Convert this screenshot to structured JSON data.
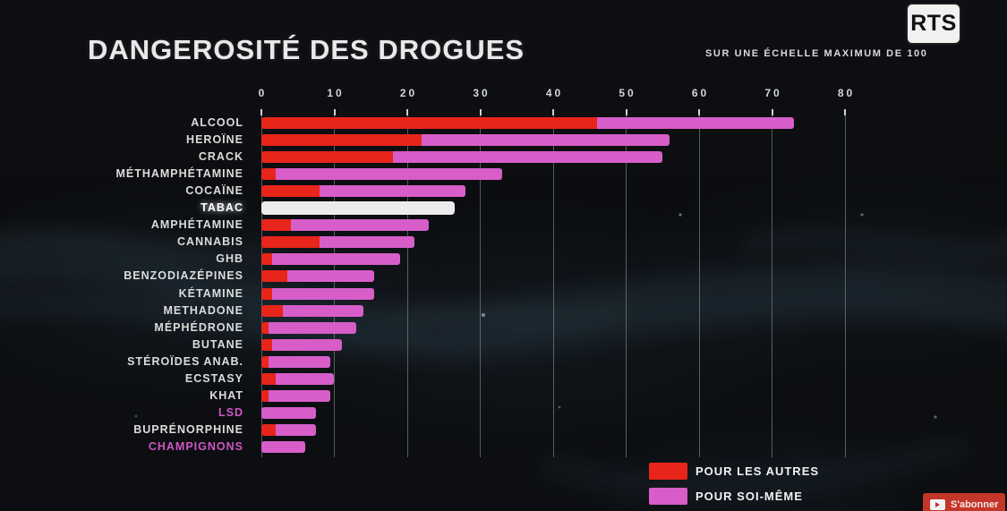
{
  "header": {
    "title": "DANGEROSITÉ DES DROGUES",
    "subtitle": "SUR UNE ÉCHELLE MAXIMUM DE 100",
    "channel_logo": "RTS"
  },
  "legend": {
    "items": [
      {
        "label": "POUR LES AUTRES",
        "key": "pour_les_autres"
      },
      {
        "label": "POUR SOI-MÊME",
        "key": "pour_soi_meme"
      }
    ]
  },
  "colors": {
    "pour_les_autres": "#e8251a",
    "pour_soi_meme": "#d75ec9",
    "highlight_bar": "#ececec",
    "accent_label": "#cf57c5",
    "grid": "#969ca0",
    "background": "#0b0d10"
  },
  "subscribe": {
    "label": "S'abonner"
  },
  "chart_data": {
    "type": "bar",
    "orientation": "horizontal",
    "stacked": true,
    "title": "DANGEROSITÉ DES DROGUES",
    "subtitle": "SUR UNE ÉCHELLE MAXIMUM DE 100",
    "xlim": [
      0,
      80
    ],
    "x_ticks": [
      0,
      10,
      20,
      30,
      40,
      50,
      60,
      70,
      80
    ],
    "grid": true,
    "legend_position": "bottom-right",
    "series_names": [
      "POUR LES AUTRES",
      "POUR SOI-MÊME"
    ],
    "bars": [
      {
        "label": "ALCOOL",
        "pour_les_autres": 46,
        "pour_soi_meme": 27
      },
      {
        "label": "HEROÏNE",
        "pour_les_autres": 22,
        "pour_soi_meme": 34
      },
      {
        "label": "CRACK",
        "pour_les_autres": 18,
        "pour_soi_meme": 37
      },
      {
        "label": "MÉTHAMPHÉTAMINE",
        "pour_les_autres": 2,
        "pour_soi_meme": 31
      },
      {
        "label": "COCAÏNE",
        "pour_les_autres": 8,
        "pour_soi_meme": 20
      },
      {
        "label": "TABAC",
        "total": 26.5,
        "bar_style": "highlight",
        "label_style": "highlight"
      },
      {
        "label": "AMPHÉTAMINE",
        "pour_les_autres": 4,
        "pour_soi_meme": 19
      },
      {
        "label": "CANNABIS",
        "pour_les_autres": 8,
        "pour_soi_meme": 13
      },
      {
        "label": "GHB",
        "pour_les_autres": 1.5,
        "pour_soi_meme": 17.5
      },
      {
        "label": "BENZODIAZÉPINES",
        "pour_les_autres": 3.5,
        "pour_soi_meme": 12
      },
      {
        "label": "KÉTAMINE",
        "pour_les_autres": 1.5,
        "pour_soi_meme": 14
      },
      {
        "label": "METHADONE",
        "pour_les_autres": 3,
        "pour_soi_meme": 11
      },
      {
        "label": "MÉPHÉDRONE",
        "pour_les_autres": 1,
        "pour_soi_meme": 12
      },
      {
        "label": "BUTANE",
        "pour_les_autres": 1.5,
        "pour_soi_meme": 9.5
      },
      {
        "label": "STÉROÏDES ANAB.",
        "pour_les_autres": 1,
        "pour_soi_meme": 8.5
      },
      {
        "label": "ECSTASY",
        "pour_les_autres": 2,
        "pour_soi_meme": 8
      },
      {
        "label": "KHAT",
        "pour_les_autres": 1,
        "pour_soi_meme": 8.5
      },
      {
        "label": "LSD",
        "pour_les_autres": 0,
        "pour_soi_meme": 7.5,
        "label_style": "accent"
      },
      {
        "label": "BUPRÉNORPHINE",
        "pour_les_autres": 2,
        "pour_soi_meme": 5.5
      },
      {
        "label": "CHAMPIGNONS",
        "pour_les_autres": 0,
        "pour_soi_meme": 6,
        "label_style": "accent"
      }
    ]
  }
}
